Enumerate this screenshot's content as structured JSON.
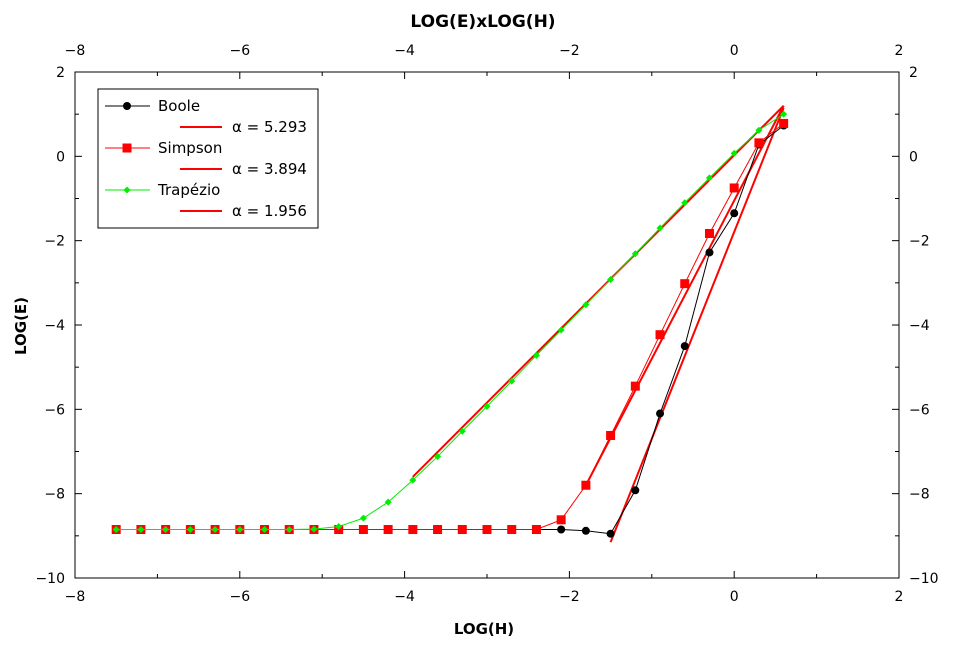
{
  "chart_data": {
    "type": "line",
    "title": "LOG(E)xLOG(H)",
    "xlabel": "LOG(H)",
    "ylabel": "LOG(E)",
    "xlim": [
      -8,
      2
    ],
    "ylim": [
      -10,
      2
    ],
    "x_ticks": [
      -8,
      -6,
      -4,
      -2,
      0,
      2
    ],
    "y_ticks": [
      -10,
      -8,
      -6,
      -4,
      -2,
      0,
      2
    ],
    "x_tick_labels": [
      "−8",
      "−6",
      "−4",
      "−2",
      "0",
      "2"
    ],
    "y_tick_labels": [
      "−10",
      "−8",
      "−6",
      "−4",
      "−2",
      "0",
      "2"
    ],
    "grid": false,
    "legend_position": "top-left",
    "series": [
      {
        "name": "Boole",
        "color": "#000000",
        "marker": "circle",
        "x": [
          -7.5,
          -7.2,
          -6.9,
          -6.6,
          -6.3,
          -6.0,
          -5.7,
          -5.4,
          -5.1,
          -4.8,
          -4.5,
          -4.2,
          -3.9,
          -3.6,
          -3.3,
          -3.0,
          -2.7,
          -2.4,
          -2.1,
          -1.8,
          -1.5,
          -1.2,
          -0.9,
          -0.6,
          -0.3,
          0.0,
          0.3,
          0.6
        ],
        "y": [
          -8.85,
          -8.85,
          -8.85,
          -8.85,
          -8.85,
          -8.85,
          -8.85,
          -8.85,
          -8.85,
          -8.85,
          -8.85,
          -8.85,
          -8.85,
          -8.85,
          -8.85,
          -8.85,
          -8.85,
          -8.85,
          -8.85,
          -8.88,
          -8.95,
          -7.92,
          -6.1,
          -4.5,
          -2.28,
          -1.35,
          0.28,
          0.73
        ]
      },
      {
        "name": "Simpson",
        "color": "#ff0000",
        "marker": "square",
        "x": [
          -7.5,
          -7.2,
          -6.9,
          -6.6,
          -6.3,
          -6.0,
          -5.7,
          -5.4,
          -5.1,
          -4.8,
          -4.5,
          -4.2,
          -3.9,
          -3.6,
          -3.3,
          -3.0,
          -2.7,
          -2.4,
          -2.1,
          -1.8,
          -1.5,
          -1.2,
          -0.9,
          -0.6,
          -0.3,
          0.0,
          0.3,
          0.6
        ],
        "y": [
          -8.85,
          -8.85,
          -8.85,
          -8.85,
          -8.85,
          -8.85,
          -8.85,
          -8.85,
          -8.85,
          -8.85,
          -8.85,
          -8.85,
          -8.85,
          -8.85,
          -8.85,
          -8.85,
          -8.85,
          -8.85,
          -8.62,
          -7.8,
          -6.62,
          -5.45,
          -4.23,
          -3.02,
          -1.83,
          -0.75,
          0.32,
          0.78
        ]
      },
      {
        "name": "Trapézio",
        "color": "#00ee00",
        "marker": "diamond",
        "x": [
          -7.5,
          -7.2,
          -6.9,
          -6.6,
          -6.3,
          -6.0,
          -5.7,
          -5.4,
          -5.1,
          -4.8,
          -4.5,
          -4.2,
          -3.9,
          -3.6,
          -3.3,
          -3.0,
          -2.7,
          -2.4,
          -2.1,
          -1.8,
          -1.5,
          -1.2,
          -0.9,
          -0.6,
          -0.3,
          0.0,
          0.3,
          0.6
        ],
        "y": [
          -8.85,
          -8.85,
          -8.85,
          -8.85,
          -8.85,
          -8.85,
          -8.85,
          -8.85,
          -8.84,
          -8.78,
          -8.58,
          -8.2,
          -7.68,
          -7.12,
          -6.52,
          -5.93,
          -5.33,
          -4.72,
          -4.12,
          -3.52,
          -2.92,
          -2.31,
          -1.7,
          -1.1,
          -0.51,
          0.07,
          0.62,
          1.0
        ]
      }
    ],
    "fits": [
      {
        "label": "α = 5.293",
        "color": "#ff0000",
        "x": [
          -1.5,
          0.6
        ],
        "y": [
          -9.15,
          1.15
        ]
      },
      {
        "label": "α = 3.894",
        "color": "#ff0000",
        "x": [
          -1.8,
          0.6
        ],
        "y": [
          -7.8,
          1.2
        ]
      },
      {
        "label": "α = 1.956",
        "color": "#ff0000",
        "x": [
          -3.9,
          0.6
        ],
        "y": [
          -7.6,
          1.2
        ]
      }
    ]
  }
}
